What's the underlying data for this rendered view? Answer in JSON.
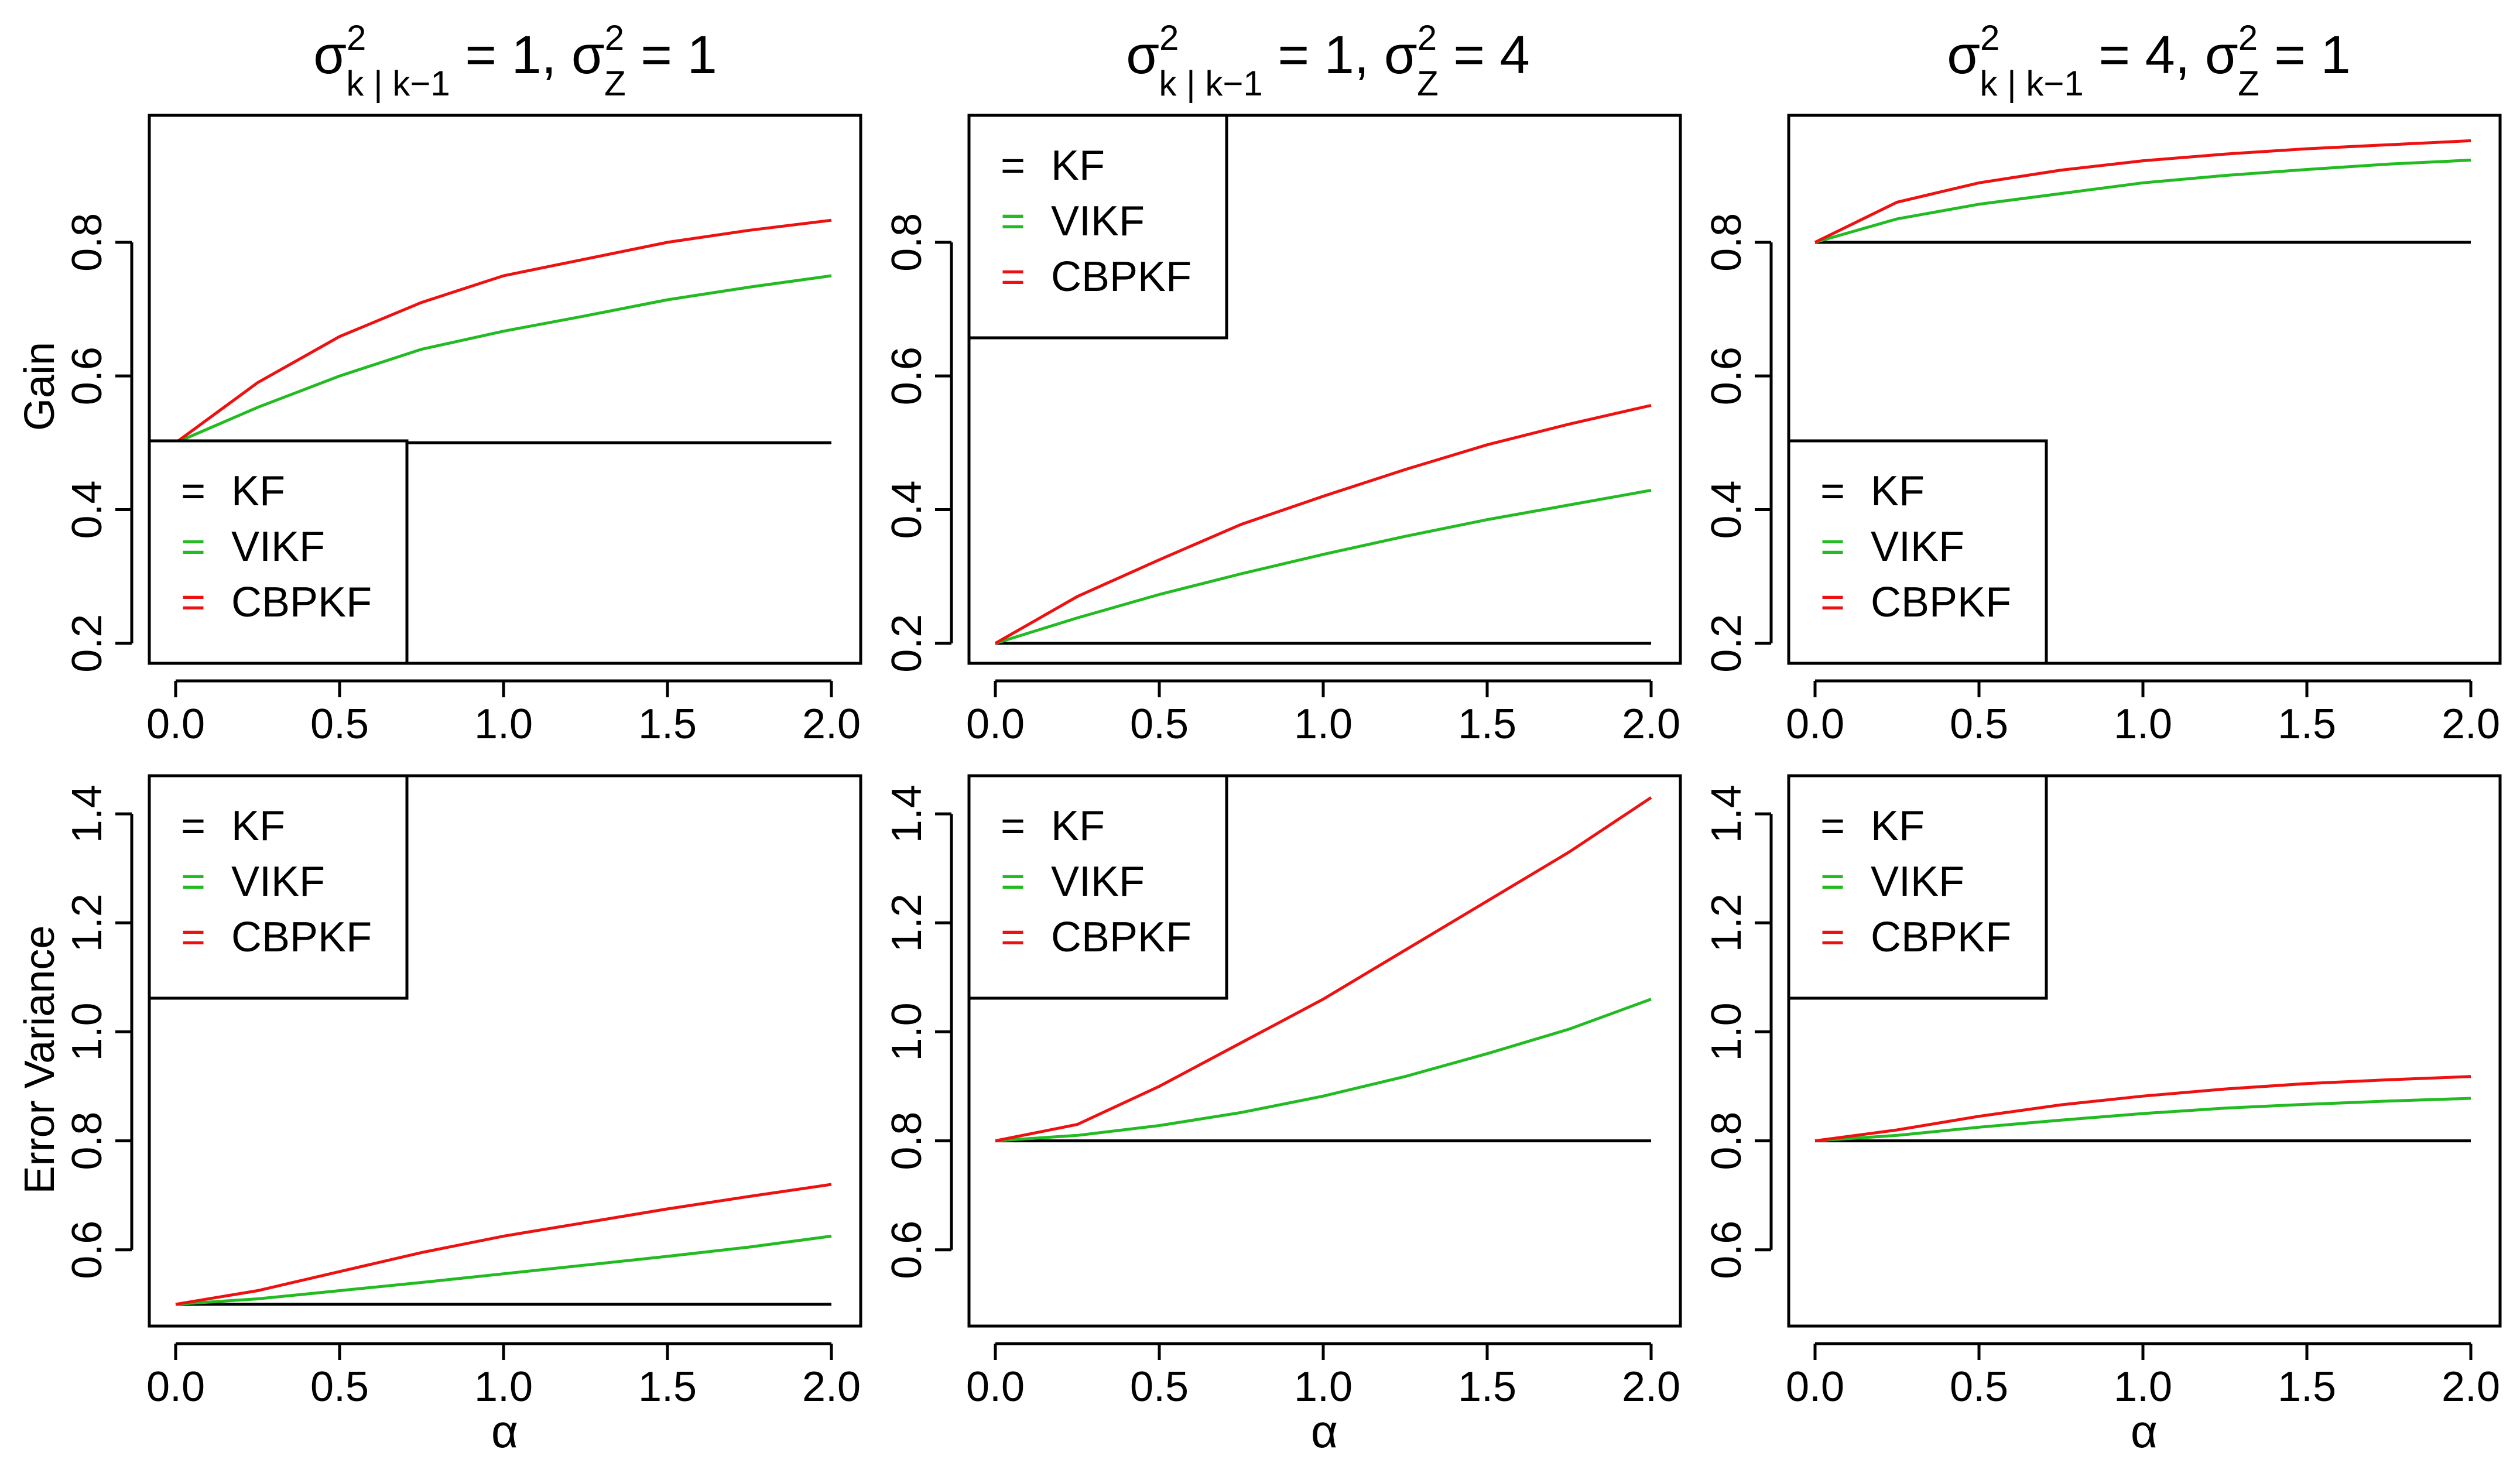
{
  "colors": {
    "KF": "#000000",
    "VIKF": "#22bb22",
    "CBPKF": "#ee1111"
  },
  "figure": {
    "xlabel": "α",
    "row_ylabels": [
      "Gain",
      "Error Variance"
    ],
    "col_titles": [
      {
        "sigma": "σ",
        "sup1": "2",
        "sub": "k | k−1",
        "eq1": " = 1, σ",
        "sup2": "2",
        "subz": "Z",
        "eq2": " = 1"
      },
      {
        "sigma": "σ",
        "sup1": "2",
        "sub": "k | k−1",
        "eq1": " = 1, σ",
        "sup2": "2",
        "subz": "Z",
        "eq2": " = 4"
      },
      {
        "sigma": "σ",
        "sup1": "2",
        "sub": "k | k−1",
        "eq1": " = 4, σ",
        "sup2": "2",
        "subz": "Z",
        "eq2": " = 1"
      }
    ],
    "legend_marker": "="
  },
  "chart_data": [
    {
      "type": "line",
      "panel": "top-left",
      "ylabel": "Gain",
      "xlabel": "",
      "xlim": [
        0,
        2
      ],
      "ylim": [
        0.17,
        0.99
      ],
      "xticks": [
        0,
        0.5,
        1,
        1.5,
        2
      ],
      "xtick_labels": [
        "0.0",
        "0.5",
        "1.0",
        "1.5",
        "2.0"
      ],
      "yticks": [
        0.2,
        0.4,
        0.6,
        0.8
      ],
      "ytick_labels": [
        "0.2",
        "0.4",
        "0.6",
        "0.8"
      ],
      "legend_position": "bottom-left",
      "x": [
        0,
        0.25,
        0.5,
        0.75,
        1,
        1.25,
        1.5,
        1.75,
        2
      ],
      "series": [
        {
          "name": "KF",
          "values": [
            0.5,
            0.5,
            0.5,
            0.5,
            0.5,
            0.5,
            0.5,
            0.5,
            0.5
          ]
        },
        {
          "name": "VIKF",
          "values": [
            0.5,
            0.553,
            0.6,
            0.64,
            0.667,
            0.69,
            0.714,
            0.733,
            0.75
          ]
        },
        {
          "name": "CBPKF",
          "values": [
            0.5,
            0.59,
            0.659,
            0.71,
            0.75,
            0.775,
            0.8,
            0.818,
            0.833
          ]
        }
      ]
    },
    {
      "type": "line",
      "panel": "top-middle",
      "ylabel": "",
      "xlabel": "",
      "xlim": [
        0,
        2
      ],
      "ylim": [
        0.17,
        0.99
      ],
      "xticks": [
        0,
        0.5,
        1,
        1.5,
        2
      ],
      "xtick_labels": [
        "0.0",
        "0.5",
        "1.0",
        "1.5",
        "2.0"
      ],
      "yticks": [
        0.2,
        0.4,
        0.6,
        0.8
      ],
      "ytick_labels": [
        "0.2",
        "0.4",
        "0.6",
        "0.8"
      ],
      "legend_position": "top-left",
      "x": [
        0,
        0.25,
        0.5,
        0.75,
        1,
        1.25,
        1.5,
        1.75,
        2
      ],
      "series": [
        {
          "name": "KF",
          "values": [
            0.2,
            0.2,
            0.2,
            0.2,
            0.2,
            0.2,
            0.2,
            0.2,
            0.2
          ]
        },
        {
          "name": "VIKF",
          "values": [
            0.2,
            0.238,
            0.273,
            0.304,
            0.333,
            0.36,
            0.385,
            0.407,
            0.429
          ]
        },
        {
          "name": "CBPKF",
          "values": [
            0.2,
            0.27,
            0.325,
            0.378,
            0.42,
            0.46,
            0.497,
            0.528,
            0.556
          ]
        }
      ]
    },
    {
      "type": "line",
      "panel": "top-right",
      "ylabel": "",
      "xlabel": "",
      "xlim": [
        0,
        2
      ],
      "ylim": [
        0.17,
        0.99
      ],
      "xticks": [
        0,
        0.5,
        1,
        1.5,
        2
      ],
      "xtick_labels": [
        "0.0",
        "0.5",
        "1.0",
        "1.5",
        "2.0"
      ],
      "yticks": [
        0.2,
        0.4,
        0.6,
        0.8
      ],
      "ytick_labels": [
        "0.2",
        "0.4",
        "0.6",
        "0.8"
      ],
      "legend_position": "bottom-left",
      "x": [
        0,
        0.25,
        0.5,
        0.75,
        1,
        1.25,
        1.5,
        1.75,
        2
      ],
      "series": [
        {
          "name": "KF",
          "values": [
            0.8,
            0.8,
            0.8,
            0.8,
            0.8,
            0.8,
            0.8,
            0.8,
            0.8
          ]
        },
        {
          "name": "VIKF",
          "values": [
            0.8,
            0.835,
            0.857,
            0.873,
            0.889,
            0.9,
            0.909,
            0.917,
            0.923
          ]
        },
        {
          "name": "CBPKF",
          "values": [
            0.8,
            0.86,
            0.889,
            0.908,
            0.922,
            0.932,
            0.94,
            0.946,
            0.952
          ]
        }
      ]
    },
    {
      "type": "line",
      "panel": "bottom-left",
      "ylabel": "Error Variance",
      "xlabel": "α",
      "xlim": [
        0,
        2
      ],
      "ylim": [
        0.46,
        1.47
      ],
      "xticks": [
        0,
        0.5,
        1,
        1.5,
        2
      ],
      "xtick_labels": [
        "0.0",
        "0.5",
        "1.0",
        "1.5",
        "2.0"
      ],
      "yticks": [
        0.6,
        0.8,
        1.0,
        1.2,
        1.4
      ],
      "ytick_labels": [
        "0.6",
        "0.8",
        "1.0",
        "1.2",
        "1.4"
      ],
      "legend_position": "top-left",
      "x": [
        0,
        0.25,
        0.5,
        0.75,
        1,
        1.25,
        1.5,
        1.75,
        2
      ],
      "series": [
        {
          "name": "KF",
          "values": [
            0.5,
            0.5,
            0.5,
            0.5,
            0.5,
            0.5,
            0.5,
            0.5,
            0.5
          ]
        },
        {
          "name": "VIKF",
          "values": [
            0.5,
            0.51,
            0.525,
            0.54,
            0.556,
            0.572,
            0.588,
            0.605,
            0.625
          ]
        },
        {
          "name": "CBPKF",
          "values": [
            0.5,
            0.525,
            0.56,
            0.595,
            0.625,
            0.65,
            0.675,
            0.698,
            0.72
          ]
        }
      ]
    },
    {
      "type": "line",
      "panel": "bottom-middle",
      "ylabel": "",
      "xlabel": "α",
      "xlim": [
        0,
        2
      ],
      "ylim": [
        0.46,
        1.47
      ],
      "xticks": [
        0,
        0.5,
        1,
        1.5,
        2
      ],
      "xtick_labels": [
        "0.0",
        "0.5",
        "1.0",
        "1.5",
        "2.0"
      ],
      "yticks": [
        0.6,
        0.8,
        1.0,
        1.2,
        1.4
      ],
      "ytick_labels": [
        "0.6",
        "0.8",
        "1.0",
        "1.2",
        "1.4"
      ],
      "legend_position": "top-left",
      "x": [
        0,
        0.25,
        0.5,
        0.75,
        1,
        1.25,
        1.5,
        1.75,
        2
      ],
      "series": [
        {
          "name": "KF",
          "values": [
            0.8,
            0.8,
            0.8,
            0.8,
            0.8,
            0.8,
            0.8,
            0.8,
            0.8
          ]
        },
        {
          "name": "VIKF",
          "values": [
            0.8,
            0.81,
            0.828,
            0.852,
            0.882,
            0.918,
            0.96,
            1.005,
            1.06
          ]
        },
        {
          "name": "CBPKF",
          "values": [
            0.8,
            0.83,
            0.9,
            0.98,
            1.06,
            1.15,
            1.24,
            1.33,
            1.43
          ]
        }
      ]
    },
    {
      "type": "line",
      "panel": "bottom-right",
      "ylabel": "",
      "xlabel": "α",
      "xlim": [
        0,
        2
      ],
      "ylim": [
        0.46,
        1.47
      ],
      "xticks": [
        0,
        0.5,
        1,
        1.5,
        2
      ],
      "xtick_labels": [
        "0.0",
        "0.5",
        "1.0",
        "1.5",
        "2.0"
      ],
      "yticks": [
        0.6,
        0.8,
        1.0,
        1.2,
        1.4
      ],
      "ytick_labels": [
        "0.6",
        "0.8",
        "1.0",
        "1.2",
        "1.4"
      ],
      "legend_position": "top-left",
      "x": [
        0,
        0.25,
        0.5,
        0.75,
        1,
        1.25,
        1.5,
        1.75,
        2
      ],
      "series": [
        {
          "name": "KF",
          "values": [
            0.8,
            0.8,
            0.8,
            0.8,
            0.8,
            0.8,
            0.8,
            0.8,
            0.8
          ]
        },
        {
          "name": "VIKF",
          "values": [
            0.8,
            0.81,
            0.825,
            0.838,
            0.85,
            0.86,
            0.867,
            0.873,
            0.878
          ]
        },
        {
          "name": "CBPKF",
          "values": [
            0.8,
            0.82,
            0.845,
            0.866,
            0.882,
            0.895,
            0.905,
            0.912,
            0.918
          ]
        }
      ]
    }
  ]
}
